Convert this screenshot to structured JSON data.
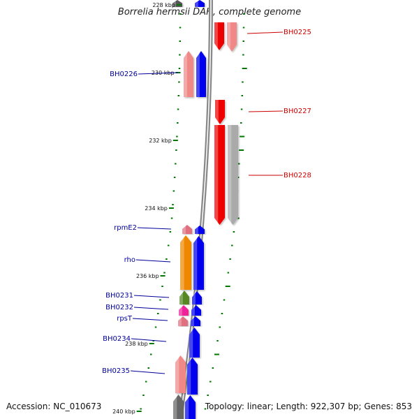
{
  "title": "Borrelia hermsii DAH, complete genome",
  "footer": {
    "accession": "Accession: NC_010673",
    "summary": "Topology: linear; Length: 922,307 bp; Genes: 853"
  },
  "colors": {
    "reverse_label": "#cc0000",
    "forward_label": "#000099",
    "tick_marks": "#007700",
    "backbone": "#888888"
  },
  "scale_labels": [
    "228 kbp",
    "230 kbp",
    "232 kbp",
    "234 kbp",
    "236 kbp",
    "238 kbp",
    "240 kbp"
  ],
  "features": [
    {
      "label": "",
      "strand": "+",
      "track": "inner",
      "color": "#555555"
    },
    {
      "label": "",
      "strand": "+",
      "track": "outer",
      "color": "#0000ee"
    },
    {
      "label": "",
      "strand": "-",
      "track": "inner",
      "color": "#ee0000"
    },
    {
      "label": "BH0225",
      "strand": "-",
      "track": "outer",
      "color": "#f08888"
    },
    {
      "label": "BH0226",
      "strand": "+",
      "track": "inner",
      "color": "#0000ee"
    },
    {
      "label": "",
      "strand": "+",
      "track": "outer",
      "color": "#f08888"
    },
    {
      "label": "BH0227",
      "strand": "-",
      "track": "inner",
      "color": "#ee0000"
    },
    {
      "label": "",
      "strand": "-",
      "track": "inner",
      "color": "#ee0000"
    },
    {
      "label": "BH0228",
      "strand": "-",
      "track": "outer",
      "color": "#aaaaaa"
    },
    {
      "label": "rpmE2",
      "strand": "+",
      "track": "outer",
      "color": "#e07080"
    },
    {
      "label": "",
      "strand": "+",
      "track": "inner",
      "color": "#0000ee"
    },
    {
      "label": "rho",
      "strand": "+",
      "track": "outer",
      "color": "#ee8800"
    },
    {
      "label": "",
      "strand": "+",
      "track": "inner",
      "color": "#0000ee"
    },
    {
      "label": "BH0231",
      "strand": "+",
      "track": "outer",
      "color": "#558822"
    },
    {
      "label": "",
      "strand": "+",
      "track": "inner",
      "color": "#0000ee"
    },
    {
      "label": "BH0232",
      "strand": "+",
      "track": "outer",
      "color": "#ee2299"
    },
    {
      "label": "",
      "strand": "+",
      "track": "inner",
      "color": "#0000ee"
    },
    {
      "label": "rpsT",
      "strand": "+",
      "track": "outer",
      "color": "#e07080"
    },
    {
      "label": "",
      "strand": "+",
      "track": "inner",
      "color": "#0000ee"
    },
    {
      "label": "BH0234",
      "strand": "+",
      "track": "inner",
      "color": "#0000ee"
    },
    {
      "label": "BH0235",
      "strand": "+",
      "track": "outer",
      "color": "#f08888"
    },
    {
      "label": "",
      "strand": "+",
      "track": "inner",
      "color": "#0000ee"
    },
    {
      "label": "",
      "strand": "+",
      "track": "outer",
      "color": "#666666"
    },
    {
      "label": "",
      "strand": "+",
      "track": "inner",
      "color": "#0000ee"
    }
  ]
}
